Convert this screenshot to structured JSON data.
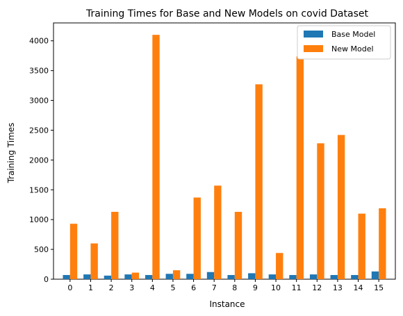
{
  "chart_data": {
    "type": "bar",
    "title": "Training Times for Base and New Models on covid Dataset",
    "xlabel": "Instance",
    "ylabel": "Training Times",
    "categories": [
      "0",
      "1",
      "2",
      "3",
      "4",
      "5",
      "6",
      "7",
      "8",
      "9",
      "10",
      "11",
      "12",
      "13",
      "14",
      "15"
    ],
    "series": [
      {
        "name": "Base Model",
        "color": "#1f77b4",
        "values": [
          70,
          80,
          60,
          80,
          70,
          90,
          90,
          120,
          70,
          100,
          80,
          70,
          80,
          70,
          70,
          130
        ]
      },
      {
        "name": "New Model",
        "color": "#ff7f0e",
        "values": [
          930,
          600,
          1130,
          110,
          4100,
          150,
          1370,
          1570,
          1130,
          3270,
          440,
          3740,
          2280,
          2420,
          1100,
          1190
        ]
      }
    ],
    "ylim": [
      0,
      4300
    ],
    "yticks": [
      0,
      500,
      1000,
      1500,
      2000,
      2500,
      3000,
      3500,
      4000
    ],
    "grid": false,
    "legend": "top-right"
  }
}
